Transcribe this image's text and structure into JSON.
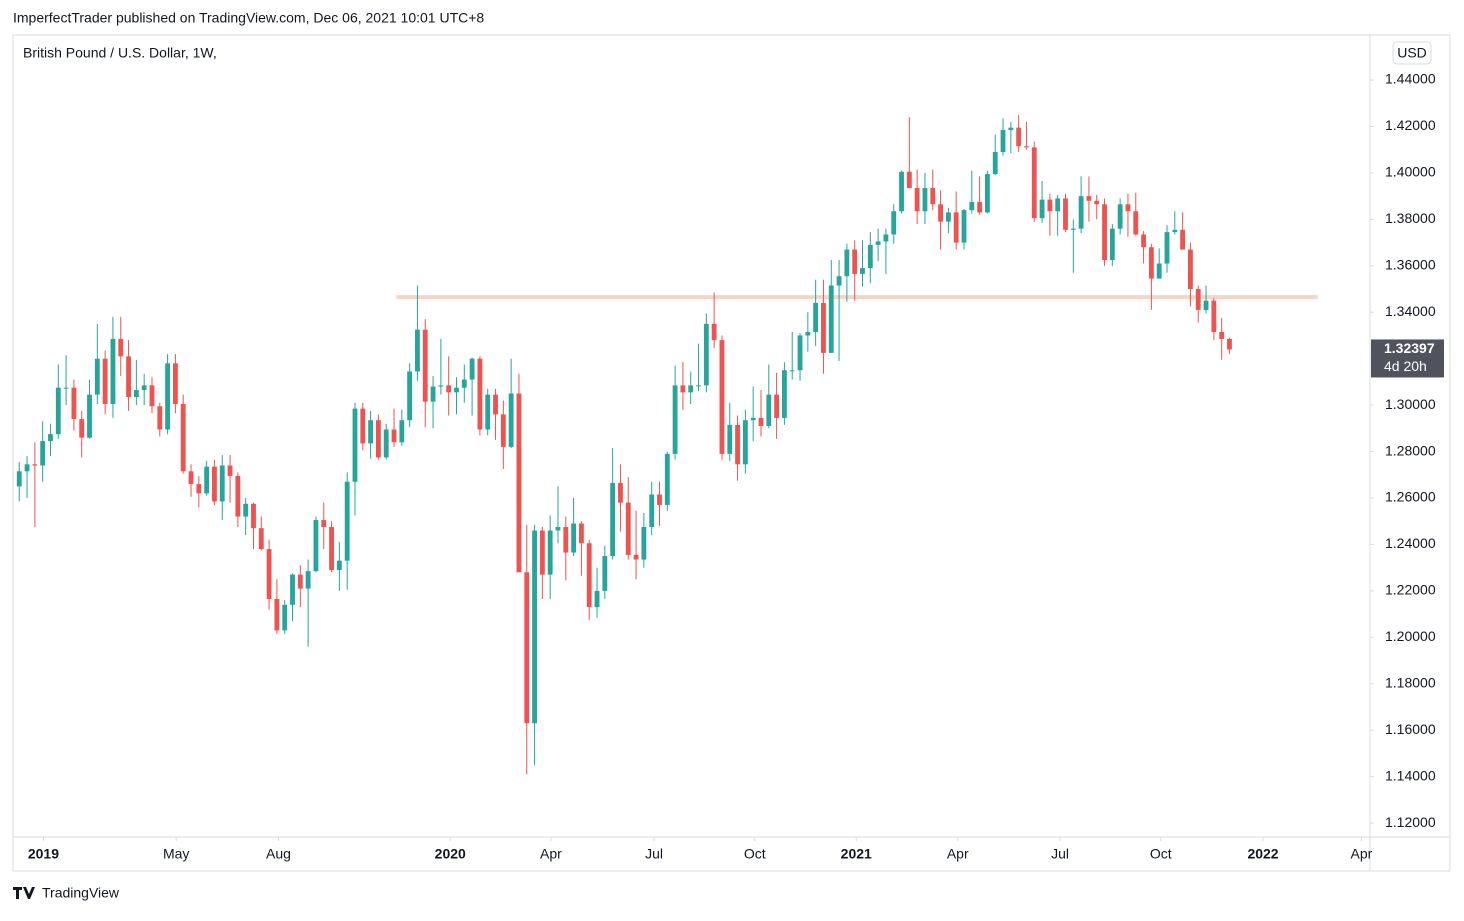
{
  "header": {
    "publisher": "ImperfectTrader published on TradingView.com, Dec 06, 2021 10:01 UTC+8"
  },
  "footer": {
    "brand": "TradingView"
  },
  "chart_data": {
    "type": "candlestick",
    "title": "British Pound / U.S. Dollar, 1W,",
    "currency": "USD",
    "up_color": "#26a69a",
    "down_color": "#ef5350",
    "open": [
      1.265,
      1.2715,
      1.2745,
      1.274,
      1.2845,
      1.2875,
      1.3075,
      1.3075,
      1.294,
      1.286,
      1.3045,
      1.32,
      1.3005,
      1.3285,
      1.321,
      1.3035,
      1.3065,
      1.3085,
      1.2995,
      1.2895,
      1.318,
      1.3005,
      1.2715,
      1.266,
      1.262,
      1.2735,
      1.2585,
      1.274,
      1.2695,
      1.252,
      1.2575,
      1.247,
      1.238,
      1.2165,
      1.203,
      1.214,
      1.227,
      1.221,
      1.2285,
      1.2505,
      1.2475,
      1.229,
      1.233,
      1.267,
      1.2985,
      1.2835,
      1.2935,
      1.2775,
      1.2895,
      1.284,
      1.2935,
      1.3145,
      1.3325,
      1.3015,
      1.308,
      1.3085,
      1.3055,
      1.3075,
      1.311,
      1.32,
      1.2895,
      1.3045,
      1.296,
      1.282,
      1.305,
      1.228,
      1.163,
      1.246,
      1.227,
      1.246,
      1.2475,
      1.2365,
      1.249,
      1.2405,
      1.213,
      1.22,
      1.235,
      1.2665,
      1.258,
      1.2355,
      1.2335,
      1.2475,
      1.2615,
      1.257,
      1.279,
      1.3085,
      1.3055,
      1.3085,
      1.3085,
      1.335,
      1.328,
      1.279,
      1.2915,
      1.2745,
      1.2935,
      1.2945,
      1.291,
      1.3045,
      1.2945,
      1.315,
      1.315,
      1.33,
      1.3315,
      1.344,
      1.3225,
      1.3515,
      1.3555,
      1.367,
      1.3565,
      1.359,
      1.369,
      1.3705,
      1.3735,
      1.3835,
      1.4005,
      1.3935,
      1.3835,
      1.3935,
      1.3865,
      1.379,
      1.383,
      1.37,
      1.384,
      1.3875,
      1.383,
      1.3995,
      1.409,
      1.4185,
      1.4195,
      1.4115,
      1.411,
      1.3805,
      1.3885,
      1.3835,
      1.389,
      1.3755,
      1.376,
      1.39,
      1.388,
      1.3865,
      1.3625,
      1.376,
      1.3865,
      1.3835,
      1.3735,
      1.368,
      1.3545,
      1.361,
      1.3745,
      1.3755,
      1.367,
      1.35,
      1.341,
      1.345,
      1.3315,
      1.3285
    ],
    "high": [
      1.2755,
      1.278,
      1.284,
      1.293,
      1.292,
      1.3175,
      1.3215,
      1.311,
      1.2975,
      1.311,
      1.335,
      1.3235,
      1.338,
      1.338,
      1.328,
      1.3195,
      1.3135,
      1.312,
      1.301,
      1.322,
      1.322,
      1.3045,
      1.2745,
      1.2695,
      1.276,
      1.2765,
      1.2785,
      1.2785,
      1.271,
      1.26,
      1.258,
      1.252,
      1.242,
      1.225,
      1.216,
      1.2275,
      1.231,
      1.2335,
      1.252,
      1.258,
      1.25,
      1.241,
      1.271,
      1.301,
      1.301,
      1.2975,
      1.296,
      1.292,
      1.2985,
      1.298,
      1.318,
      1.3515,
      1.337,
      1.3125,
      1.3285,
      1.321,
      1.312,
      1.3175,
      1.3205,
      1.321,
      1.307,
      1.307,
      1.302,
      1.32,
      1.3135,
      1.2485,
      1.2485,
      1.2475,
      1.2525,
      1.265,
      1.252,
      1.26,
      1.25,
      1.242,
      1.23,
      1.2395,
      1.2815,
      1.2745,
      1.269,
      1.2545,
      1.2535,
      1.267,
      1.267,
      1.28,
      1.317,
      1.3185,
      1.3145,
      1.3265,
      1.3395,
      1.3485,
      1.33,
      1.301,
      1.2955,
      1.298,
      1.308,
      1.3065,
      1.3175,
      1.314,
      1.3185,
      1.3315,
      1.331,
      1.34,
      1.354,
      1.354,
      1.3625,
      1.3625,
      1.3695,
      1.371,
      1.371,
      1.3745,
      1.376,
      1.376,
      1.3865,
      1.401,
      1.424,
      1.4015,
      1.4,
      1.4015,
      1.3925,
      1.385,
      1.392,
      1.3845,
      1.401,
      1.3985,
      1.401,
      1.4165,
      1.4235,
      1.422,
      1.425,
      1.422,
      1.4135,
      1.3965,
      1.391,
      1.3905,
      1.391,
      1.38,
      1.3985,
      1.3985,
      1.3905,
      1.389,
      1.378,
      1.389,
      1.391,
      1.3915,
      1.375,
      1.3695,
      1.3675,
      1.3775,
      1.3835,
      1.383,
      1.37,
      1.3515,
      1.3515,
      1.346,
      1.3375,
      1.329
    ],
    "low": [
      1.2585,
      1.26,
      1.2475,
      1.267,
      1.278,
      1.2855,
      1.3,
      1.289,
      1.2775,
      1.2855,
      1.3005,
      1.296,
      1.2945,
      1.3125,
      1.2975,
      1.3,
      1.3,
      1.2965,
      1.2865,
      1.2875,
      1.2965,
      1.2705,
      1.2605,
      1.256,
      1.261,
      1.257,
      1.2505,
      1.258,
      1.2475,
      1.244,
      1.238,
      1.2375,
      1.212,
      1.2015,
      1.2015,
      1.207,
      1.213,
      1.196,
      1.228,
      1.238,
      1.228,
      1.22,
      1.2205,
      1.2525,
      1.2805,
      1.277,
      1.2765,
      1.2765,
      1.282,
      1.2825,
      1.2905,
      1.3105,
      1.2905,
      1.29,
      1.3045,
      1.2955,
      1.296,
      1.301,
      1.2955,
      1.287,
      1.287,
      1.285,
      1.2725,
      1.2815,
      1.228,
      1.141,
      1.145,
      1.2165,
      1.2165,
      1.2405,
      1.2245,
      1.235,
      1.2265,
      1.2075,
      1.2085,
      1.2165,
      1.2335,
      1.2455,
      1.2335,
      1.225,
      1.23,
      1.244,
      1.248,
      1.2545,
      1.2765,
      1.298,
      1.3005,
      1.306,
      1.3055,
      1.3245,
      1.2765,
      1.276,
      1.2675,
      1.2705,
      1.2845,
      1.2865,
      1.29,
      1.2855,
      1.2915,
      1.311,
      1.3105,
      1.323,
      1.3255,
      1.3135,
      1.3225,
      1.319,
      1.3445,
      1.345,
      1.351,
      1.3525,
      1.362,
      1.3565,
      1.3695,
      1.3825,
      1.395,
      1.378,
      1.378,
      1.384,
      1.367,
      1.374,
      1.367,
      1.367,
      1.3825,
      1.382,
      1.3825,
      1.399,
      1.4075,
      1.4085,
      1.409,
      1.41,
      1.379,
      1.3785,
      1.373,
      1.373,
      1.3745,
      1.357,
      1.374,
      1.379,
      1.38,
      1.36,
      1.36,
      1.3735,
      1.3725,
      1.373,
      1.361,
      1.341,
      1.3545,
      1.357,
      1.3735,
      1.367,
      1.3425,
      1.3355,
      1.3395,
      1.328,
      1.3195,
      1.322
    ],
    "close": [
      1.2715,
      1.2745,
      1.274,
      1.2845,
      1.2875,
      1.3075,
      1.3075,
      1.294,
      1.286,
      1.3045,
      1.32,
      1.3005,
      1.3285,
      1.321,
      1.3035,
      1.3065,
      1.3085,
      1.2995,
      1.2895,
      1.318,
      1.3005,
      1.2715,
      1.266,
      1.262,
      1.2735,
      1.2585,
      1.274,
      1.2695,
      1.252,
      1.2575,
      1.247,
      1.238,
      1.2165,
      1.203,
      1.214,
      1.227,
      1.221,
      1.2285,
      1.2505,
      1.2475,
      1.229,
      1.233,
      1.267,
      1.2985,
      1.2835,
      1.2935,
      1.2775,
      1.2895,
      1.284,
      1.2935,
      1.3145,
      1.3325,
      1.3015,
      1.308,
      1.3085,
      1.3055,
      1.3075,
      1.311,
      1.32,
      1.2895,
      1.3045,
      1.296,
      1.282,
      1.305,
      1.228,
      1.163,
      1.246,
      1.227,
      1.246,
      1.2475,
      1.2365,
      1.249,
      1.2405,
      1.213,
      1.22,
      1.235,
      1.2665,
      1.258,
      1.2355,
      1.2335,
      1.2475,
      1.2615,
      1.257,
      1.279,
      1.3085,
      1.3055,
      1.3085,
      1.3085,
      1.335,
      1.328,
      1.279,
      1.2915,
      1.2745,
      1.2935,
      1.2945,
      1.291,
      1.3045,
      1.2945,
      1.315,
      1.315,
      1.33,
      1.3315,
      1.344,
      1.3225,
      1.3515,
      1.3555,
      1.367,
      1.3565,
      1.359,
      1.369,
      1.3705,
      1.3735,
      1.3835,
      1.4005,
      1.3935,
      1.3835,
      1.3935,
      1.3865,
      1.379,
      1.383,
      1.37,
      1.384,
      1.3875,
      1.383,
      1.3995,
      1.409,
      1.4185,
      1.4195,
      1.4115,
      1.411,
      1.3805,
      1.3885,
      1.3835,
      1.389,
      1.3755,
      1.376,
      1.39,
      1.388,
      1.3865,
      1.3625,
      1.376,
      1.3865,
      1.3835,
      1.3735,
      1.368,
      1.3545,
      1.361,
      1.3745,
      1.3755,
      1.367,
      1.35,
      1.341,
      1.345,
      1.3315,
      1.3285,
      1.32397
    ],
    "xlim": [
      -0.8,
      173
    ],
    "xticks": [
      {
        "value": 3.1,
        "label": "2019"
      },
      {
        "value": 20.1,
        "label": "May"
      },
      {
        "value": 33.2,
        "label": "Aug"
      },
      {
        "value": 55.2,
        "label": "2020"
      },
      {
        "value": 68.1,
        "label": "Apr"
      },
      {
        "value": 81.3,
        "label": "Jul"
      },
      {
        "value": 94.2,
        "label": "Oct"
      },
      {
        "value": 107.2,
        "label": "2021"
      },
      {
        "value": 120.2,
        "label": "Apr"
      },
      {
        "value": 133.3,
        "label": "Jul"
      },
      {
        "value": 146.2,
        "label": "Oct"
      },
      {
        "value": 159.3,
        "label": "2022"
      },
      {
        "value": 171.9,
        "label": "Apr"
      }
    ],
    "ylim": [
      1.114,
      1.4594
    ],
    "yticks": [
      {
        "value": 1.12,
        "label": "1.12000"
      },
      {
        "value": 1.14,
        "label": "1.14000"
      },
      {
        "value": 1.16,
        "label": "1.16000"
      },
      {
        "value": 1.18,
        "label": "1.18000"
      },
      {
        "value": 1.2,
        "label": "1.20000"
      },
      {
        "value": 1.22,
        "label": "1.22000"
      },
      {
        "value": 1.24,
        "label": "1.24000"
      },
      {
        "value": 1.26,
        "label": "1.26000"
      },
      {
        "value": 1.28,
        "label": "1.28000"
      },
      {
        "value": 1.3,
        "label": "1.30000"
      },
      {
        "value": 1.32,
        "label": "1.32000"
      },
      {
        "value": 1.34,
        "label": "1.34000"
      },
      {
        "value": 1.36,
        "label": "1.36000"
      },
      {
        "value": 1.38,
        "label": "1.38000"
      },
      {
        "value": 1.4,
        "label": "1.40000"
      },
      {
        "value": 1.42,
        "label": "1.42000"
      },
      {
        "value": 1.44,
        "label": "1.44000"
      }
    ],
    "last_price": 1.32397,
    "countdown": "4d 20h",
    "level_line": {
      "value": 1.3465,
      "x": [
        48.3,
        166.3
      ],
      "color": "#f8d3c8"
    }
  }
}
